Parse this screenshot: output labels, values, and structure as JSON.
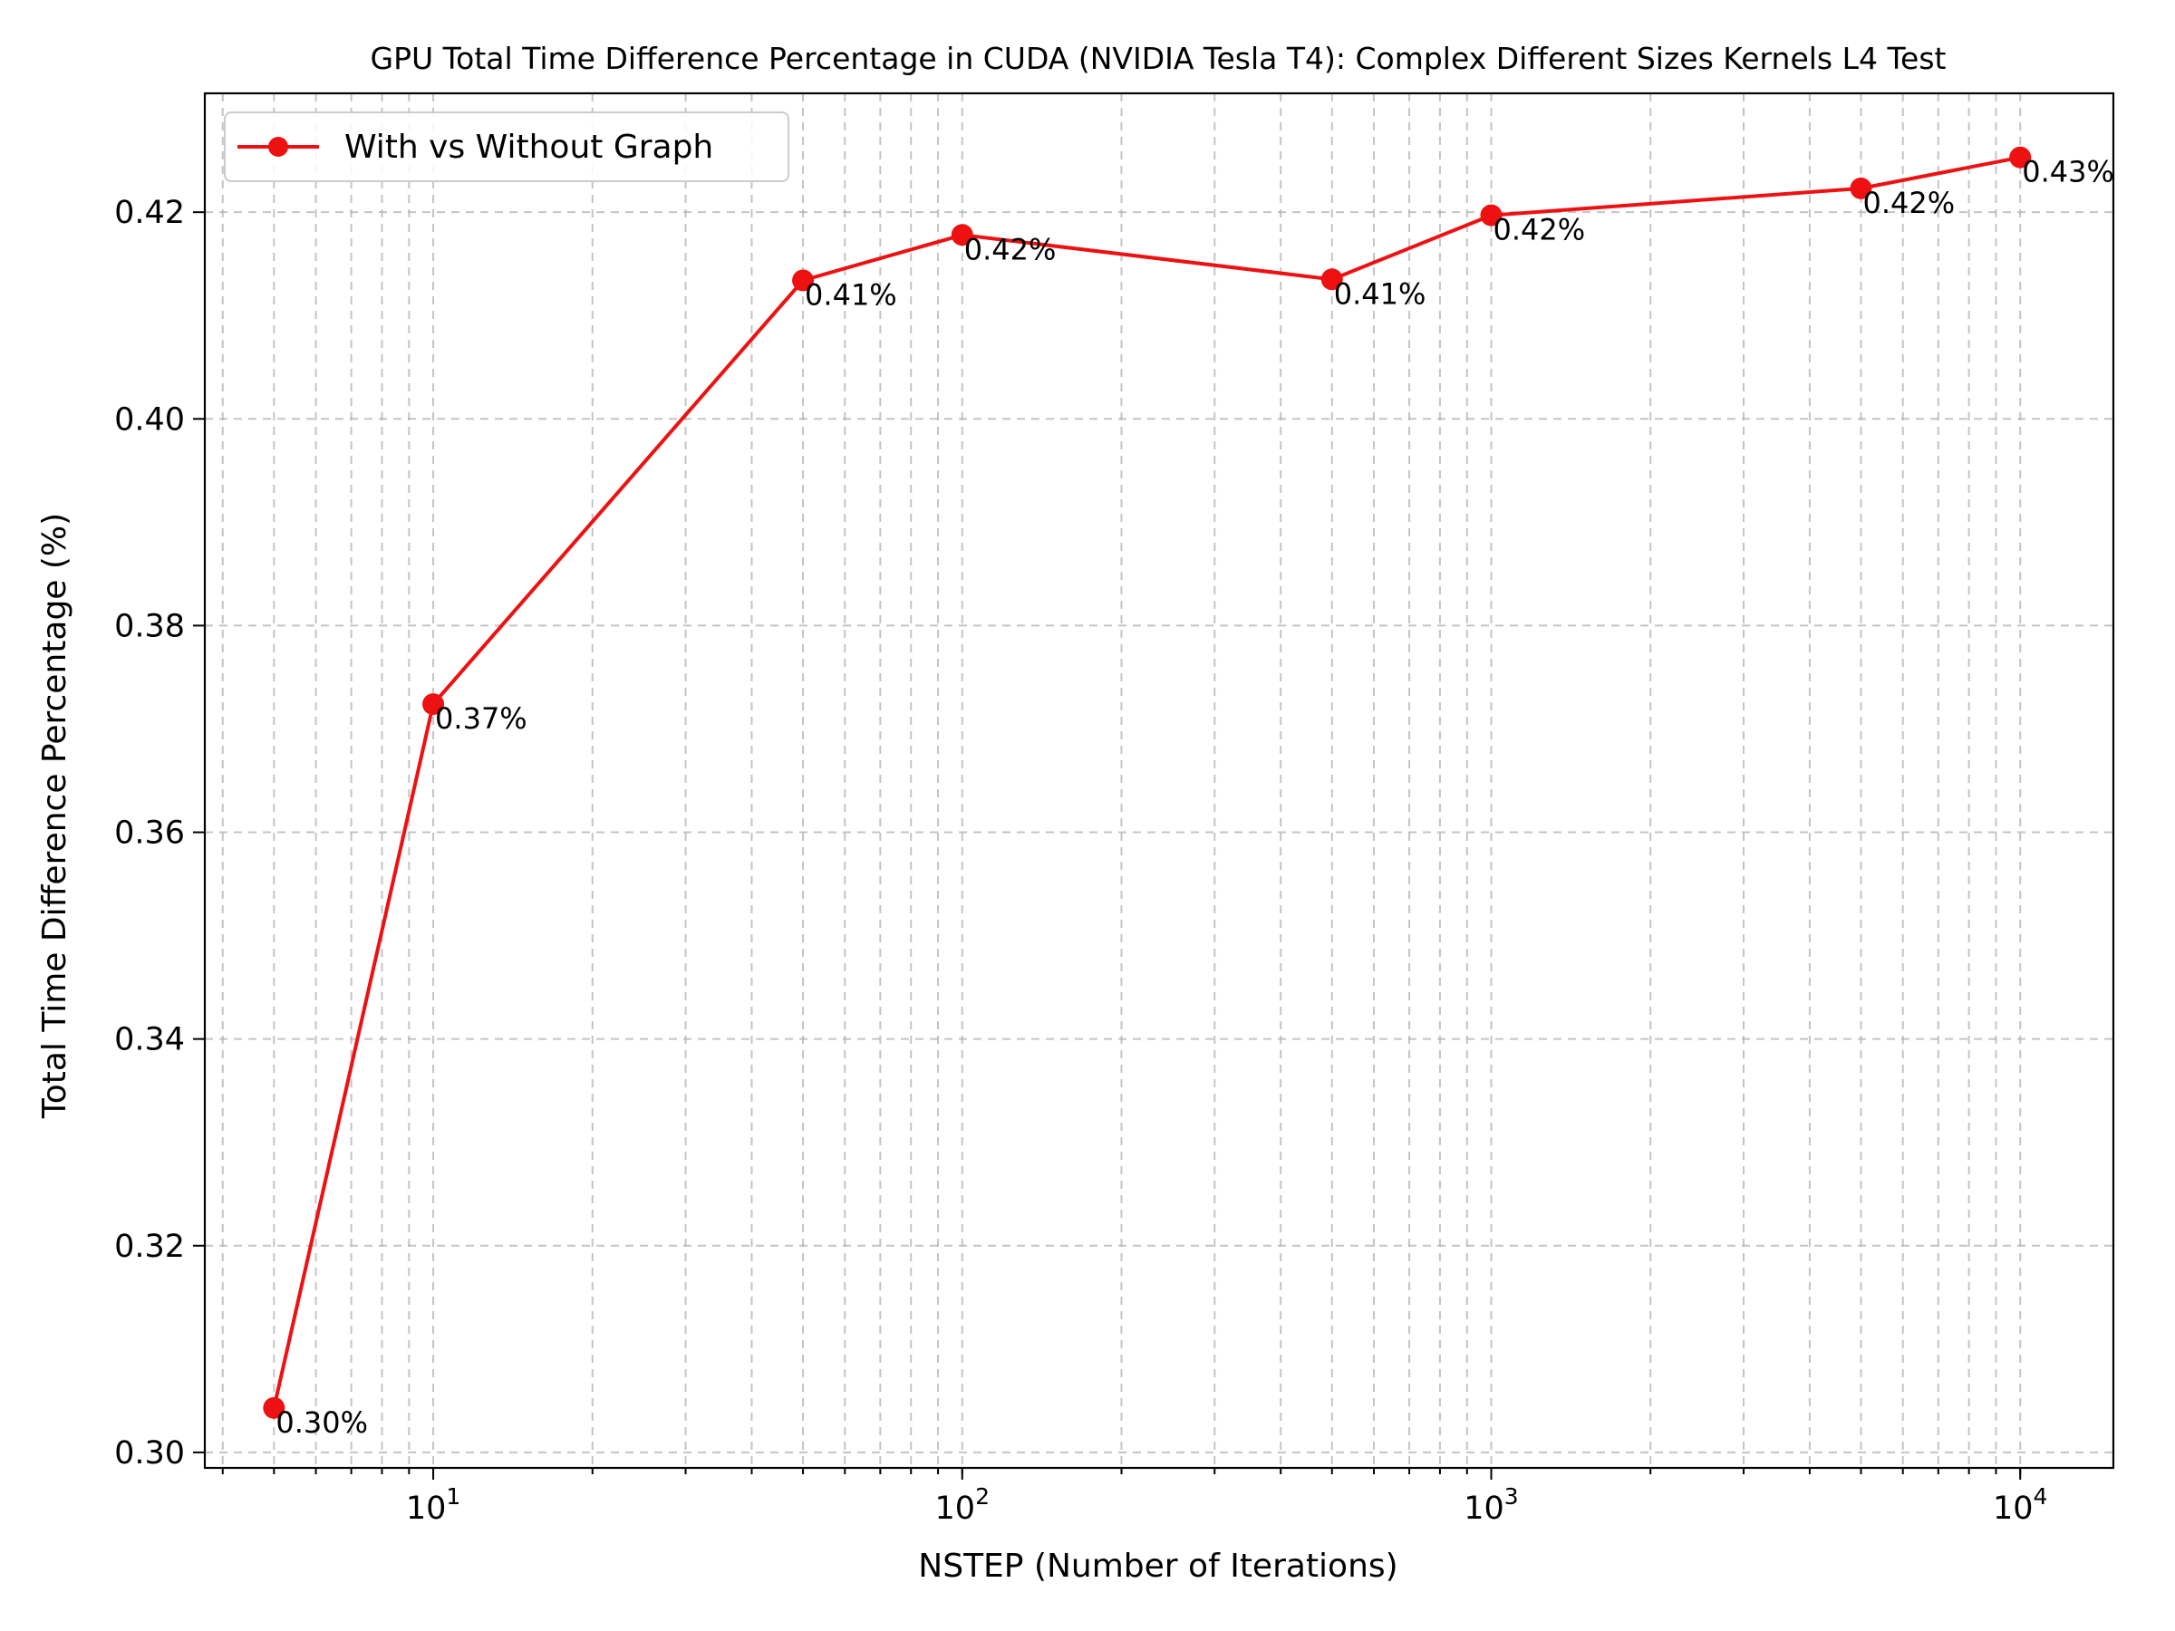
{
  "chart_data": {
    "type": "line",
    "title": "GPU Total Time Difference Percentage in CUDA (NVIDIA Tesla T4): Complex Different Sizes Kernels L4 Test",
    "xlabel": "NSTEP (Number of Iterations)",
    "ylabel": "Total Time Difference Percentage (%)",
    "x_scale": "log",
    "xlim": [
      3.7,
      15000
    ],
    "ylim": [
      0.2985,
      0.4315
    ],
    "x_ticks": [
      10,
      100,
      1000,
      10000
    ],
    "x_tick_labels": [
      {
        "base": "10",
        "exp": "1"
      },
      {
        "base": "10",
        "exp": "2"
      },
      {
        "base": "10",
        "exp": "3"
      },
      {
        "base": "10",
        "exp": "4"
      }
    ],
    "y_ticks": [
      0.3,
      0.32,
      0.34,
      0.36,
      0.38,
      0.4,
      0.42
    ],
    "y_tick_labels": [
      "0.30",
      "0.32",
      "0.34",
      "0.36",
      "0.38",
      "0.40",
      "0.42"
    ],
    "grid": true,
    "legend_position": "top-left",
    "series": [
      {
        "name": "With vs Without Graph",
        "color": "#ee1111",
        "marker": "circle",
        "x": [
          5,
          10,
          50,
          100,
          500,
          1000,
          5000,
          10000
        ],
        "y": [
          0.3043,
          0.3724,
          0.4134,
          0.4178,
          0.4135,
          0.4197,
          0.4223,
          0.4253
        ],
        "labels": [
          "0.30%",
          "0.37%",
          "0.41%",
          "0.42%",
          "0.41%",
          "0.42%",
          "0.42%",
          "0.43%"
        ]
      }
    ]
  }
}
